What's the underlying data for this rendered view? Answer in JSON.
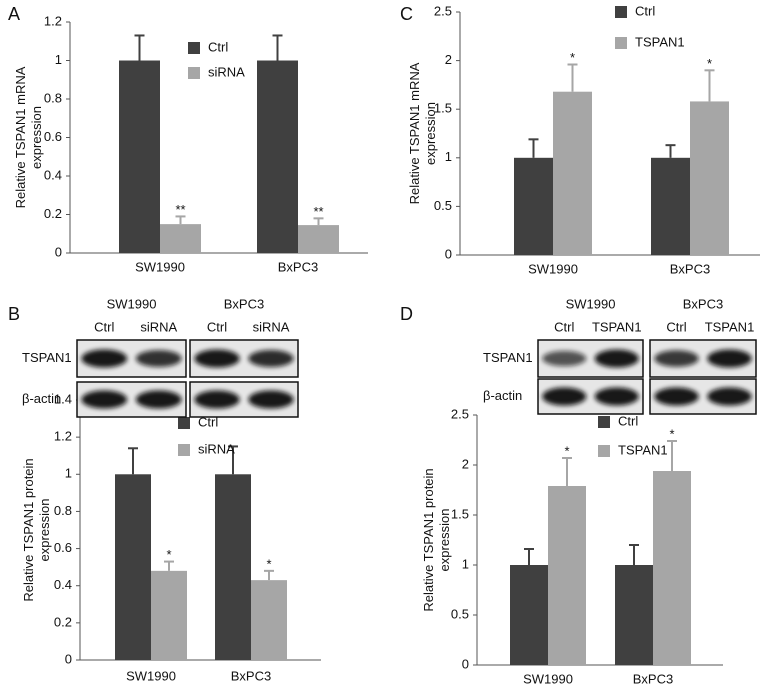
{
  "chart_data": [
    {
      "type": "bar",
      "panel": "A",
      "y_label": "Relative TSPAN1 mRNA expression",
      "categories": [
        "SW1990",
        "BxPC3"
      ],
      "series": [
        {
          "name": "Ctrl",
          "color": "#404040",
          "values": [
            1,
            1
          ],
          "errors": [
            0.13,
            0.13
          ],
          "annotations": [
            null,
            null
          ]
        },
        {
          "name": "siRNA",
          "color": "#a6a6a6",
          "values": [
            0.15,
            0.145
          ],
          "errors": [
            0.04,
            0.035
          ],
          "annotations": [
            "**",
            "**"
          ]
        }
      ],
      "ylim": [
        0,
        1.2
      ],
      "yticks": [
        0,
        0.2,
        0.4,
        0.6,
        0.8,
        1,
        1.2
      ]
    },
    {
      "type": "bar",
      "panel": "B",
      "y_label": "Relative TSPAN1 protein expression",
      "categories": [
        "SW1990",
        "BxPC3"
      ],
      "series": [
        {
          "name": "Ctrl",
          "color": "#404040",
          "values": [
            1,
            1
          ],
          "errors": [
            0.14,
            0.15
          ],
          "annotations": [
            null,
            null
          ]
        },
        {
          "name": "siRNA",
          "color": "#a6a6a6",
          "values": [
            0.48,
            0.43
          ],
          "errors": [
            0.05,
            0.05
          ],
          "annotations": [
            "*",
            "*"
          ]
        }
      ],
      "ylim": [
        0,
        1.4
      ],
      "yticks": [
        0,
        0.2,
        0.4,
        0.6,
        0.8,
        1,
        1.2,
        1.4
      ]
    },
    {
      "type": "bar",
      "panel": "C",
      "y_label": "Relative TSPAN1 mRNA expression",
      "categories": [
        "SW1990",
        "BxPC3"
      ],
      "series": [
        {
          "name": "Ctrl",
          "color": "#404040",
          "values": [
            1,
            1
          ],
          "errors": [
            0.19,
            0.13
          ],
          "annotations": [
            null,
            null
          ]
        },
        {
          "name": "TSPAN1",
          "color": "#a6a6a6",
          "values": [
            1.68,
            1.58
          ],
          "errors": [
            0.28,
            0.32
          ],
          "annotations": [
            "*",
            "*"
          ]
        }
      ],
      "ylim": [
        0,
        2.5
      ],
      "yticks": [
        0,
        0.5,
        1,
        1.5,
        2,
        2.5
      ]
    },
    {
      "type": "bar",
      "panel": "D",
      "y_label": "Relative TSPAN1 protein expression",
      "categories": [
        "SW1990",
        "BxPC3"
      ],
      "series": [
        {
          "name": "Ctrl",
          "color": "#404040",
          "values": [
            1,
            1
          ],
          "errors": [
            0.16,
            0.2
          ],
          "annotations": [
            null,
            null
          ]
        },
        {
          "name": "TSPAN1",
          "color": "#a6a6a6",
          "values": [
            1.79,
            1.94
          ],
          "errors": [
            0.28,
            0.3
          ],
          "annotations": [
            "*",
            "*"
          ]
        }
      ],
      "ylim": [
        0,
        2.5
      ],
      "yticks": [
        0,
        0.5,
        1,
        1.5,
        2,
        2.5
      ]
    }
  ],
  "blots": [
    {
      "groups": [
        {
          "name": "SW1990",
          "lanes": [
            "Ctrl",
            "siRNA"
          ]
        },
        {
          "name": "BxPC3",
          "lanes": [
            "Ctrl",
            "siRNA"
          ]
        }
      ],
      "rows": [
        "TSPAN1",
        "β-actin"
      ]
    },
    {
      "groups": [
        {
          "name": "SW1990",
          "lanes": [
            "Ctrl",
            "TSPAN1"
          ]
        },
        {
          "name": "BxPC3",
          "lanes": [
            "Ctrl",
            "TSPAN1"
          ]
        }
      ],
      "rows": [
        "TSPAN1",
        "β-actin"
      ]
    }
  ]
}
